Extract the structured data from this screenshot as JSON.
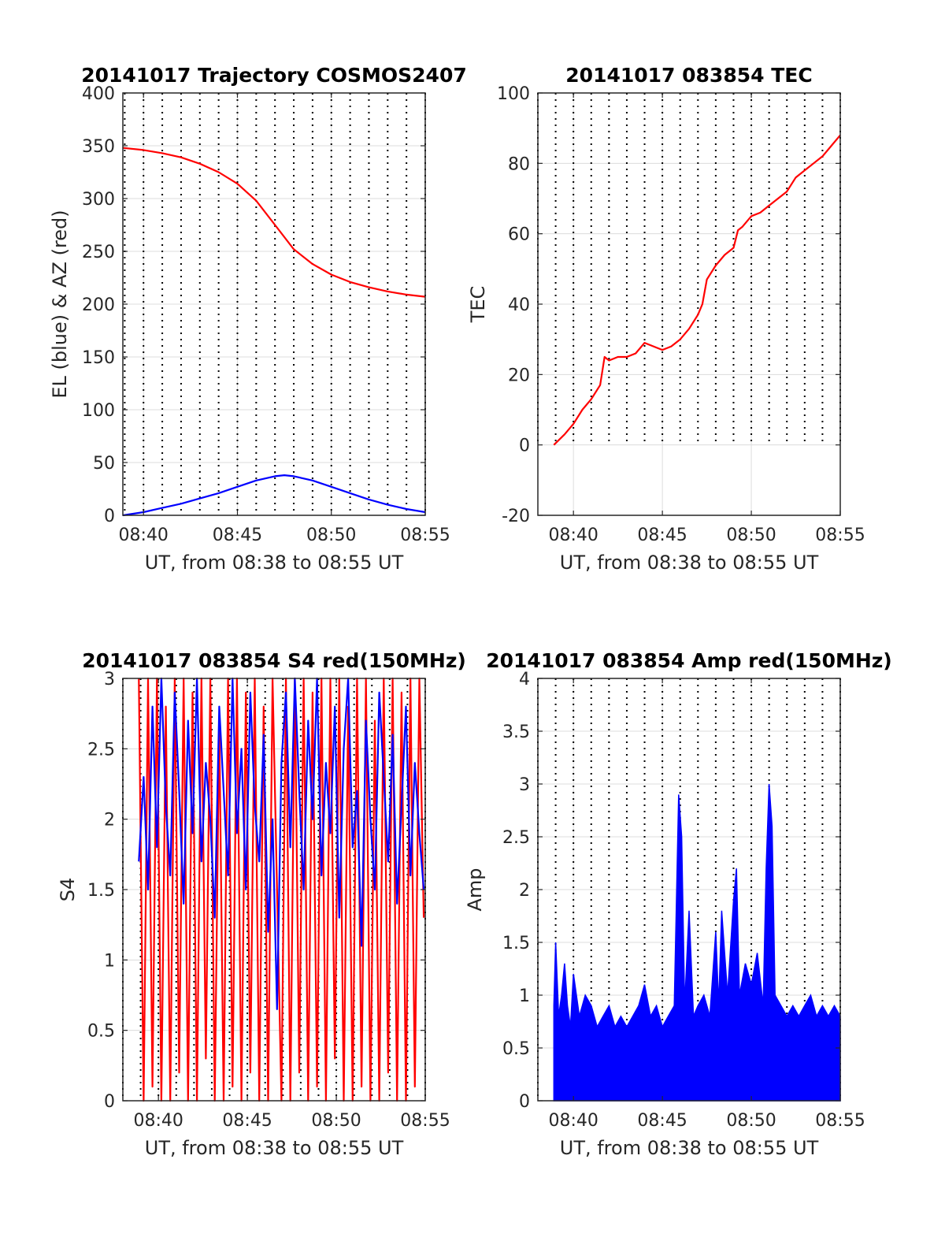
{
  "chart_data": [
    {
      "id": "traj",
      "type": "line",
      "title": "20141017 Trajectory COSMOS2407",
      "xlabel": "UT, from 08:38 to 08:55 UT",
      "ylabel": "EL (blue) & AZ (red)",
      "xlim": [
        "08:38:54",
        "08:55:00"
      ],
      "ylim": [
        0,
        400
      ],
      "yticks": [
        0,
        50,
        100,
        150,
        200,
        250,
        300,
        350,
        400
      ],
      "xticks": [
        "08:40",
        "08:45",
        "08:50",
        "08:55"
      ],
      "grid": true,
      "series": [
        {
          "color": "#ff0000",
          "x": [
            "08:38:54",
            "08:40:00",
            "08:41:00",
            "08:42:00",
            "08:43:00",
            "08:44:00",
            "08:45:00",
            "08:46:00",
            "08:47:00",
            "08:48:00",
            "08:49:00",
            "08:50:00",
            "08:51:00",
            "08:52:00",
            "08:53:00",
            "08:54:00",
            "08:55:00"
          ],
          "y": [
            348,
            346,
            343,
            339,
            333,
            325,
            314,
            298,
            275,
            252,
            238,
            228,
            221,
            216,
            212,
            209,
            207
          ]
        },
        {
          "color": "#0000ff",
          "x": [
            "08:38:54",
            "08:40:00",
            "08:41:00",
            "08:42:00",
            "08:43:00",
            "08:44:00",
            "08:45:00",
            "08:46:00",
            "08:47:00",
            "08:47:30",
            "08:48:00",
            "08:49:00",
            "08:50:00",
            "08:51:00",
            "08:52:00",
            "08:53:00",
            "08:54:00",
            "08:55:00"
          ],
          "y": [
            0,
            3,
            7,
            11,
            16,
            21,
            27,
            33,
            37,
            38,
            37,
            33,
            27,
            21,
            15,
            10,
            6,
            3
          ]
        }
      ]
    },
    {
      "id": "tec",
      "type": "line",
      "title": "20141017 083854 TEC",
      "xlabel": "UT, from 08:38 to 08:55 UT",
      "ylabel": "TEC",
      "xlim": [
        "08:38:00",
        "08:55:00"
      ],
      "ylim": [
        -20,
        100
      ],
      "yticks": [
        -20,
        0,
        20,
        40,
        60,
        80,
        100
      ],
      "xticks": [
        "08:40",
        "08:45",
        "08:50",
        "08:55"
      ],
      "grid": true,
      "series": [
        {
          "color": "#ff0000",
          "x": [
            "08:38:54",
            "08:39:30",
            "08:40:00",
            "08:40:30",
            "08:41:00",
            "08:41:30",
            "08:41:45",
            "08:42:00",
            "08:42:30",
            "08:43:00",
            "08:43:30",
            "08:44:00",
            "08:44:30",
            "08:45:00",
            "08:45:30",
            "08:46:00",
            "08:46:30",
            "08:47:00",
            "08:47:15",
            "08:47:30",
            "08:48:00",
            "08:48:30",
            "08:49:00",
            "08:49:15",
            "08:49:30",
            "08:50:00",
            "08:50:30",
            "08:51:00",
            "08:51:30",
            "08:52:00",
            "08:52:30",
            "08:53:00",
            "08:53:30",
            "08:54:00",
            "08:54:30",
            "08:55:00"
          ],
          "y": [
            0,
            3,
            6,
            10,
            13,
            17,
            25,
            24,
            25,
            25,
            26,
            29,
            28,
            27,
            28,
            30,
            33,
            37,
            40,
            47,
            51,
            54,
            56,
            61,
            62,
            65,
            66,
            68,
            70,
            72,
            76,
            78,
            80,
            82,
            85,
            88
          ]
        }
      ]
    },
    {
      "id": "s4",
      "type": "line",
      "title": "20141017 083854 S4 red(150MHz)",
      "xlabel": "UT, from 08:38 to 08:55 UT",
      "ylabel": "S4",
      "xlim": [
        "08:38:00",
        "08:55:00"
      ],
      "ylim": [
        0,
        3
      ],
      "yticks": [
        0,
        0.5,
        1,
        1.5,
        2,
        2.5,
        3
      ],
      "xticks": [
        "08:40",
        "08:45",
        "08:50",
        "08:55"
      ],
      "grid": true,
      "series": [
        {
          "color": "#ff0000",
          "x": [
            "08:38:54",
            "08:39:10",
            "08:39:25",
            "08:39:40",
            "08:39:55",
            "08:40:10",
            "08:40:25",
            "08:40:40",
            "08:40:55",
            "08:41:10",
            "08:41:25",
            "08:41:40",
            "08:41:55",
            "08:42:10",
            "08:42:25",
            "08:42:40",
            "08:42:55",
            "08:43:10",
            "08:43:25",
            "08:43:40",
            "08:43:55",
            "08:44:10",
            "08:44:25",
            "08:44:40",
            "08:44:55",
            "08:45:10",
            "08:45:25",
            "08:45:40",
            "08:45:55",
            "08:46:10",
            "08:46:25",
            "08:46:40",
            "08:46:55",
            "08:47:10",
            "08:47:25",
            "08:47:40",
            "08:47:55",
            "08:48:10",
            "08:48:25",
            "08:48:40",
            "08:48:55",
            "08:49:10",
            "08:49:25",
            "08:49:40",
            "08:49:55",
            "08:50:10",
            "08:50:25",
            "08:50:40",
            "08:50:55",
            "08:51:10",
            "08:51:25",
            "08:51:40",
            "08:51:55",
            "08:52:10",
            "08:52:25",
            "08:52:40",
            "08:52:55",
            "08:53:10",
            "08:53:25",
            "08:53:40",
            "08:53:55",
            "08:54:10",
            "08:54:25",
            "08:54:40",
            "08:54:55"
          ],
          "y": [
            3,
            0,
            3,
            0.1,
            3,
            0,
            2.8,
            0,
            3,
            0.2,
            3,
            0,
            2.9,
            0,
            3,
            0.3,
            3,
            0,
            2.7,
            0,
            3,
            0.1,
            3,
            0,
            2.9,
            0.2,
            3,
            0,
            2.8,
            0,
            3,
            1.5,
            0,
            3,
            0,
            3,
            0.2,
            3,
            0,
            2.9,
            0.1,
            3,
            0,
            3,
            0.3,
            3,
            0,
            2.8,
            0,
            3,
            0.1,
            3,
            0,
            2.7,
            0,
            3,
            0.2,
            3,
            0,
            2.9,
            0,
            3,
            0.1,
            3,
            1.3
          ]
        },
        {
          "color": "#0000ff",
          "x": [
            "08:38:54",
            "08:39:10",
            "08:39:25",
            "08:39:40",
            "08:39:55",
            "08:40:10",
            "08:40:25",
            "08:40:40",
            "08:40:55",
            "08:41:10",
            "08:41:25",
            "08:41:40",
            "08:41:55",
            "08:42:10",
            "08:42:25",
            "08:42:40",
            "08:42:55",
            "08:43:10",
            "08:43:25",
            "08:43:40",
            "08:43:55",
            "08:44:10",
            "08:44:25",
            "08:44:40",
            "08:44:55",
            "08:45:10",
            "08:45:25",
            "08:45:40",
            "08:45:55",
            "08:46:10",
            "08:46:25",
            "08:46:40",
            "08:46:55",
            "08:47:10",
            "08:47:25",
            "08:47:40",
            "08:47:55",
            "08:48:10",
            "08:48:25",
            "08:48:40",
            "08:48:55",
            "08:49:10",
            "08:49:25",
            "08:49:40",
            "08:49:55",
            "08:50:10",
            "08:50:25",
            "08:50:40",
            "08:50:55",
            "08:51:10",
            "08:51:25",
            "08:51:40",
            "08:51:55",
            "08:52:10",
            "08:52:25",
            "08:52:40",
            "08:52:55",
            "08:53:10",
            "08:53:25",
            "08:53:40",
            "08:53:55",
            "08:54:10",
            "08:54:25",
            "08:54:40",
            "08:54:55"
          ],
          "y": [
            1.7,
            2.3,
            1.5,
            2.8,
            1.8,
            3,
            2.1,
            1.6,
            2.9,
            2.2,
            1.4,
            2.7,
            1.9,
            3,
            1.7,
            2.4,
            2.0,
            1.3,
            2.8,
            2.2,
            1.6,
            3,
            1.9,
            2.5,
            1.5,
            2.9,
            2.1,
            1.7,
            2.6,
            1.2,
            2.0,
            0.65,
            2.4,
            2.9,
            1.8,
            3,
            2.2,
            1.5,
            2.7,
            2.0,
            3,
            1.6,
            2.4,
            1.9,
            2.8,
            1.3,
            2.5,
            3,
            1.8,
            2.2,
            1.1,
            2.7,
            2.0,
            1.5,
            2.9,
            2.3,
            1.7,
            2.6,
            1.4,
            2.1,
            2.8,
            1.6,
            2.4,
            1.9,
            1.5
          ]
        }
      ]
    },
    {
      "id": "amp",
      "type": "line",
      "title": "20141017 083854 Amp red(150MHz)",
      "xlabel": "UT, from 08:38 to 08:55 UT",
      "ylabel": "Amp",
      "xlim": [
        "08:38:00",
        "08:55:00"
      ],
      "ylim": [
        0,
        4
      ],
      "yticks": [
        0,
        0.5,
        1,
        1.5,
        2,
        2.5,
        3,
        3.5,
        4
      ],
      "yticklabels": [
        "0",
        "0.5",
        "1",
        "1.5",
        "2",
        "2.5",
        "3",
        "3.5",
        "4"
      ],
      "xticks": [
        "08:40",
        "08:45",
        "08:50",
        "08:55"
      ],
      "grid": true,
      "fill_to_zero": true,
      "series": [
        {
          "color": "#0000ff",
          "x": [
            "08:38:54",
            "08:39:00",
            "08:39:10",
            "08:39:20",
            "08:39:30",
            "08:39:40",
            "08:39:50",
            "08:40:00",
            "08:40:20",
            "08:40:40",
            "08:41:00",
            "08:41:20",
            "08:41:40",
            "08:42:00",
            "08:42:20",
            "08:42:40",
            "08:43:00",
            "08:43:20",
            "08:43:40",
            "08:44:00",
            "08:44:20",
            "08:44:40",
            "08:45:00",
            "08:45:20",
            "08:45:40",
            "08:45:55",
            "08:46:05",
            "08:46:15",
            "08:46:30",
            "08:46:45",
            "08:47:00",
            "08:47:20",
            "08:47:40",
            "08:48:00",
            "08:48:10",
            "08:48:20",
            "08:48:40",
            "08:49:00",
            "08:49:10",
            "08:49:20",
            "08:49:40",
            "08:50:00",
            "08:50:20",
            "08:50:40",
            "08:50:50",
            "08:51:00",
            "08:51:10",
            "08:51:20",
            "08:51:40",
            "08:52:00",
            "08:52:20",
            "08:52:40",
            "08:53:00",
            "08:53:20",
            "08:53:40",
            "08:54:00",
            "08:54:20",
            "08:54:40",
            "08:55:00"
          ],
          "y": [
            0.9,
            1.5,
            0.8,
            1.0,
            1.3,
            0.9,
            0.7,
            1.2,
            0.8,
            1.0,
            0.9,
            0.7,
            0.8,
            0.9,
            0.7,
            0.8,
            0.7,
            0.8,
            0.9,
            1.1,
            0.8,
            0.9,
            0.7,
            0.8,
            0.9,
            2.9,
            2.5,
            0.9,
            1.8,
            0.8,
            0.9,
            1.0,
            0.8,
            1.6,
            0.9,
            1.8,
            1.0,
            1.9,
            2.2,
            1.0,
            1.3,
            1.1,
            1.4,
            0.9,
            2.2,
            3.0,
            2.6,
            1.0,
            0.9,
            0.8,
            0.9,
            0.8,
            0.9,
            1.0,
            0.8,
            0.9,
            0.8,
            0.9,
            0.8
          ]
        }
      ]
    }
  ]
}
